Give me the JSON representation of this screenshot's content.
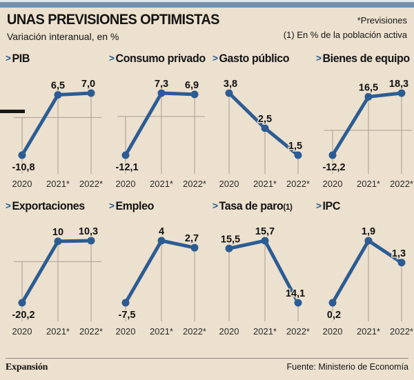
{
  "page": {
    "title": "UNAS PREVISIONES OPTIMISTAS",
    "subtitle": "Variación interanual, en %",
    "note_top": "*Previsiones",
    "note_bottom": "(1) En % de la población activa",
    "bullet": ">"
  },
  "footer": {
    "brand": "Expansión",
    "source": "Fuente: Ministerio de Economía"
  },
  "colors": {
    "background": "#ECE0CE",
    "line": "#2B5C93",
    "grid": "#A79E90",
    "topbar": "#7191B3",
    "arrow": "#1E5A96",
    "label": "#111111",
    "year_label": "#2A2A2A"
  },
  "chart_data": [
    {
      "type": "line",
      "title": "PIB",
      "title_suffix": "",
      "categories": [
        "2020",
        "2021*",
        "2022*"
      ],
      "values": [
        -10.8,
        6.5,
        7.0
      ],
      "value_labels": [
        "-10,8",
        "6,5",
        "7,0"
      ],
      "label_position": [
        "below",
        "above",
        "above"
      ],
      "zero_line": true
    },
    {
      "type": "line",
      "title": "Consumo privado",
      "title_suffix": "",
      "categories": [
        "2020",
        "2021*",
        "2022*"
      ],
      "values": [
        -12.1,
        7.3,
        6.9
      ],
      "value_labels": [
        "-12,1",
        "7,3",
        "6,9"
      ],
      "label_position": [
        "below",
        "above",
        "above"
      ],
      "zero_line": true
    },
    {
      "type": "line",
      "title": "Gasto público",
      "title_suffix": "",
      "categories": [
        "2020",
        "2021*",
        "2022*"
      ],
      "values": [
        3.8,
        2.5,
        1.5
      ],
      "value_labels": [
        "3,8",
        "2,5",
        "1,5"
      ],
      "label_position": [
        "above",
        "above",
        "above"
      ],
      "zero_line": false
    },
    {
      "type": "line",
      "title": "Bienes de equipo",
      "title_suffix": "",
      "categories": [
        "2020",
        "2021*",
        "2022*"
      ],
      "values": [
        -12.2,
        16.5,
        18.3
      ],
      "value_labels": [
        "-12,2",
        "16,5",
        "18,3"
      ],
      "label_position": [
        "below",
        "above",
        "above"
      ],
      "zero_line": true
    },
    {
      "type": "line",
      "title": "Exportaciones",
      "title_suffix": "",
      "categories": [
        "2020",
        "2021*",
        "2022*"
      ],
      "values": [
        -20.2,
        10,
        10.3
      ],
      "value_labels": [
        "-20,2",
        "10",
        "10,3"
      ],
      "label_position": [
        "below",
        "above",
        "above"
      ],
      "zero_line": true
    },
    {
      "type": "line",
      "title": "Empleo",
      "title_suffix": "",
      "categories": [
        "2020",
        "2021*",
        "2022*"
      ],
      "values": [
        -7.5,
        4,
        2.7
      ],
      "value_labels": [
        "-7,5",
        "4",
        "2,7"
      ],
      "label_position": [
        "below",
        "above",
        "above"
      ],
      "zero_line": false
    },
    {
      "type": "line",
      "title": "Tasa de paro",
      "title_suffix": "(1)",
      "categories": [
        "2020",
        "2021*",
        "2022*"
      ],
      "values": [
        15.5,
        15.7,
        14.1
      ],
      "value_labels": [
        "15,5",
        "15,7",
        "14,1"
      ],
      "label_position": [
        "above",
        "above",
        "above"
      ],
      "zero_line": false
    },
    {
      "type": "line",
      "title": "IPC",
      "title_suffix": "",
      "categories": [
        "2020",
        "2021*",
        "2022*"
      ],
      "values": [
        0.2,
        1.9,
        1.3
      ],
      "value_labels": [
        "0,2",
        "1,9",
        "1,3"
      ],
      "label_position": [
        "below",
        "above",
        "above"
      ],
      "zero_line": false
    }
  ]
}
